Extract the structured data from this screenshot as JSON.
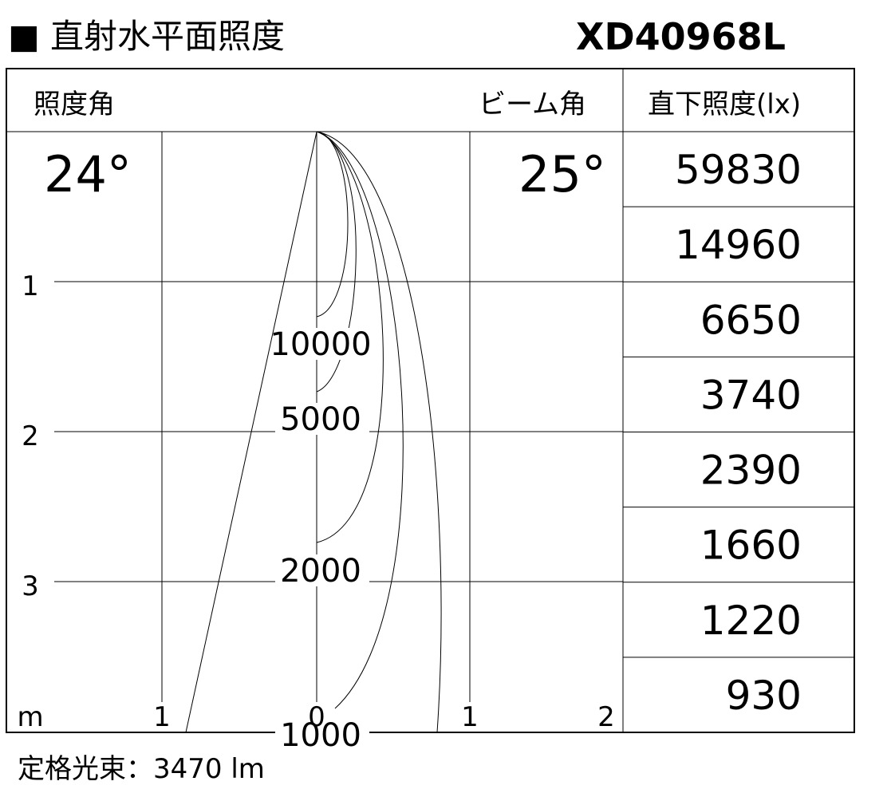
{
  "header": {
    "title": "■ 直射水平面照度",
    "model": "XD40968L"
  },
  "diagram": {
    "labels": {
      "illuminance_angle": "照度角",
      "beam_angle": "ビーム角",
      "center_illuminance": "直下照度(lx)"
    },
    "angles": {
      "illuminance_angle": "24°",
      "beam_angle": "25°"
    },
    "depth_ticks": [
      "1",
      "2",
      "3"
    ],
    "width_ticks": [
      "m",
      "1",
      "0",
      "1",
      "2"
    ],
    "contours": [
      "10000",
      "5000",
      "2000",
      "1000"
    ],
    "table": [
      59830,
      14960,
      6650,
      3740,
      2390,
      1660,
      1220,
      930
    ]
  },
  "footer": "定格光束：3470 lm"
}
